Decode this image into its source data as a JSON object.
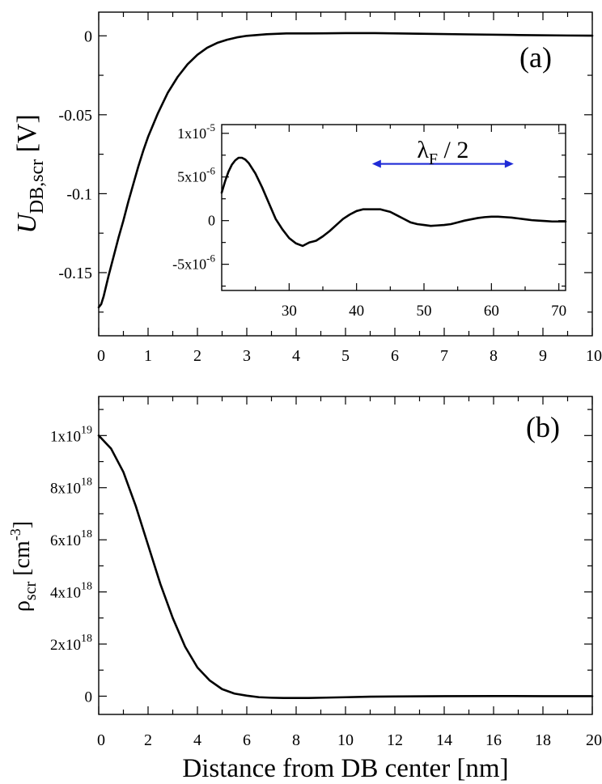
{
  "chart_data": [
    {
      "id": "a",
      "type": "line",
      "panel_label": "(a)",
      "ylabel": {
        "main": "U",
        "sub": "DB,scr",
        "unit": "[V]"
      },
      "xlabel": "",
      "xlim": [
        0,
        10
      ],
      "ylim": [
        -0.19,
        0.015
      ],
      "x_ticks": [
        {
          "value": 0,
          "label": "0"
        },
        {
          "value": 1,
          "label": "1"
        },
        {
          "value": 2,
          "label": "2"
        },
        {
          "value": 3,
          "label": "3"
        },
        {
          "value": 4,
          "label": "4"
        },
        {
          "value": 5,
          "label": "5"
        },
        {
          "value": 6,
          "label": "6"
        },
        {
          "value": 7,
          "label": "7"
        },
        {
          "value": 8,
          "label": "8"
        },
        {
          "value": 9,
          "label": "9"
        },
        {
          "value": 10,
          "label": "10"
        }
      ],
      "y_ticks": [
        {
          "value": 0,
          "label": "0"
        },
        {
          "value": -0.05,
          "label": "-0.05"
        },
        {
          "value": -0.1,
          "label": "-0.1"
        },
        {
          "value": -0.15,
          "label": "-0.15"
        }
      ],
      "series": [
        {
          "name": "U_DB,scr",
          "x": [
            0,
            0.05,
            0.1,
            0.2,
            0.3,
            0.4,
            0.5,
            0.6,
            0.7,
            0.8,
            0.9,
            1.0,
            1.2,
            1.4,
            1.6,
            1.8,
            2.0,
            2.2,
            2.4,
            2.6,
            2.8,
            3.0,
            3.4,
            3.8,
            4.2,
            4.6,
            5.0,
            5.6,
            6.5,
            7.5,
            8.5,
            9.5,
            10.0
          ],
          "y": [
            -0.172,
            -0.17,
            -0.165,
            -0.152,
            -0.14,
            -0.128,
            -0.117,
            -0.105,
            -0.094,
            -0.083,
            -0.073,
            -0.064,
            -0.049,
            -0.036,
            -0.026,
            -0.018,
            -0.012,
            -0.0075,
            -0.0045,
            -0.0025,
            -0.001,
            0.0,
            0.001,
            0.0015,
            0.0015,
            0.0016,
            0.0017,
            0.0017,
            0.0013,
            0.0009,
            0.0005,
            0.0002,
            0.0001
          ]
        }
      ]
    },
    {
      "id": "inset",
      "type": "line",
      "xlim": [
        20,
        71
      ],
      "ylim": [
        -8e-06,
        1.1e-05
      ],
      "x_ticks": [
        {
          "value": 30,
          "label": "30"
        },
        {
          "value": 40,
          "label": "40"
        },
        {
          "value": 50,
          "label": "50"
        },
        {
          "value": 60,
          "label": "60"
        },
        {
          "value": 70,
          "label": "70"
        }
      ],
      "y_ticks": [
        {
          "value": 1e-05,
          "mant": "1x10",
          "exp": "-5"
        },
        {
          "value": 5e-06,
          "mant": "5x10",
          "exp": "-6"
        },
        {
          "value": 0,
          "mant": "0",
          "exp": ""
        },
        {
          "value": -5e-06,
          "mant": "-5x10",
          "exp": "-6"
        }
      ],
      "annotation": {
        "text_main": "λ",
        "text_sub": "F",
        "text_rest": " / 2",
        "arrow_from": 42.3,
        "arrow_to": 63.3,
        "arrow_y": 6.5e-06,
        "color": "#1f2bd6"
      },
      "series": [
        {
          "name": "U_DB,scr inset",
          "x": [
            20,
            20.5,
            21,
            21.5,
            22,
            22.5,
            23,
            23.5,
            24,
            25,
            26,
            27,
            28,
            29,
            30,
            31,
            32,
            33,
            33.5,
            34,
            35,
            36,
            37,
            38,
            39,
            40,
            41,
            42,
            43,
            43.5,
            44,
            45,
            46,
            47,
            48,
            49,
            50,
            51,
            52,
            53,
            54,
            55,
            56,
            57,
            58,
            59,
            60,
            61,
            62,
            63,
            64,
            65,
            66,
            67,
            68,
            69,
            70,
            71
          ],
          "y": [
            3.2e-06,
            4.5e-06,
            5.6e-06,
            6.4e-06,
            6.9e-06,
            7.2e-06,
            7.2e-06,
            7e-06,
            6.6e-06,
            5.4e-06,
            3.8e-06,
            2e-06,
            2e-07,
            -1e-06,
            -2e-06,
            -2.6e-06,
            -2.9e-06,
            -2.5e-06,
            -2.4e-06,
            -2.3e-06,
            -1.8e-06,
            -1.2e-06,
            -5e-07,
            2e-07,
            7e-07,
            1.1e-06,
            1.3e-06,
            1.3e-06,
            1.3e-06,
            1.3e-06,
            1.2e-06,
            1e-06,
            6e-07,
            2e-07,
            -2e-07,
            -4e-07,
            -5e-07,
            -6e-07,
            -5.5e-07,
            -5e-07,
            -4e-07,
            -2e-07,
            0.0,
            1.5e-07,
            3e-07,
            4e-07,
            4.5e-07,
            4.5e-07,
            4e-07,
            3.5e-07,
            2.5e-07,
            1.5e-07,
            5e-08,
            0.0,
            -5e-08,
            -1e-07,
            -1e-07,
            -1e-07
          ]
        }
      ]
    },
    {
      "id": "b",
      "type": "line",
      "panel_label": "(b)",
      "ylabel": {
        "main": "ρ",
        "sub": "scr",
        "unit": "[cm",
        "unit_sup": "-3",
        "unit_end": "]"
      },
      "xlabel": "Distance from DB center [nm]",
      "xlim": [
        0,
        20
      ],
      "ylim": [
        -7e+17,
        1.15e+19
      ],
      "x_ticks": [
        {
          "value": 0,
          "label": "0"
        },
        {
          "value": 2,
          "label": "2"
        },
        {
          "value": 4,
          "label": "4"
        },
        {
          "value": 6,
          "label": "6"
        },
        {
          "value": 8,
          "label": "8"
        },
        {
          "value": 10,
          "label": "10"
        },
        {
          "value": 12,
          "label": "12"
        },
        {
          "value": 14,
          "label": "14"
        },
        {
          "value": 16,
          "label": "16"
        },
        {
          "value": 18,
          "label": "18"
        },
        {
          "value": 20,
          "label": "20"
        }
      ],
      "y_ticks": [
        {
          "value": 1e+19,
          "mant": "1x10",
          "exp": "19"
        },
        {
          "value": 8e+18,
          "mant": "8x10",
          "exp": "18"
        },
        {
          "value": 6e+18,
          "mant": "6x10",
          "exp": "18"
        },
        {
          "value": 4e+18,
          "mant": "4x10",
          "exp": "18"
        },
        {
          "value": 2e+18,
          "mant": "2x10",
          "exp": "18"
        },
        {
          "value": 0,
          "mant": "0",
          "exp": ""
        }
      ],
      "series": [
        {
          "name": "rho_scr",
          "x": [
            0,
            0.5,
            1.0,
            1.5,
            2.0,
            2.5,
            3.0,
            3.5,
            4.0,
            4.5,
            5.0,
            5.5,
            6.0,
            6.5,
            7.0,
            7.5,
            8.0,
            8.5,
            9.0,
            10,
            11,
            12,
            14,
            16,
            18,
            20
          ],
          "y": [
            1e+19,
            9.5e+18,
            8.6e+18,
            7.3e+18,
            5.8e+18,
            4.3e+18,
            3e+18,
            1.9e+18,
            1.1e+18,
            6e+17,
            2.7e+17,
            1e+17,
            2e+16,
            -4e+16,
            -6e+16,
            -7e+16,
            -7e+16,
            -7e+16,
            -6e+16,
            -4e+16,
            -2e+16,
            -1e+16,
            0,
            5000000000000000.0,
            0,
            0
          ]
        }
      ]
    }
  ]
}
